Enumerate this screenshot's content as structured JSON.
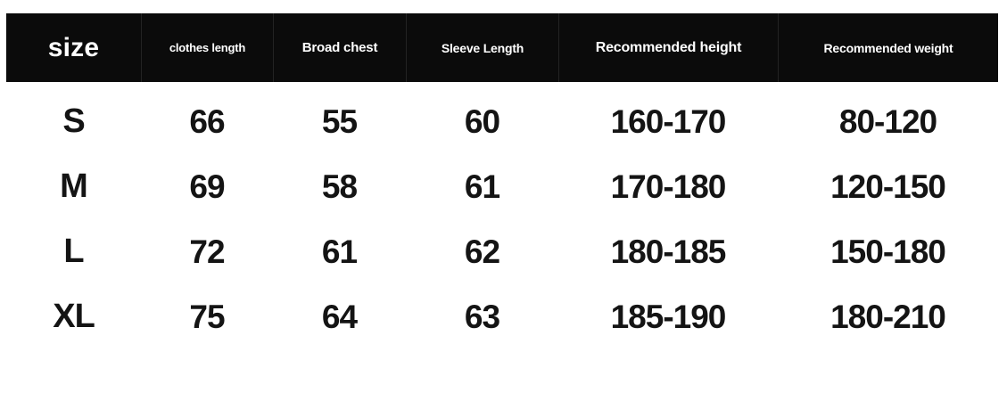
{
  "chart_data": {
    "type": "table",
    "columns": [
      "size",
      "clothes length",
      "Broad chest",
      "Sleeve Length",
      "Recommended height",
      "Recommended weight"
    ],
    "rows": [
      [
        "S",
        "66",
        "55",
        "60",
        "160-170",
        "80-120"
      ],
      [
        "M",
        "69",
        "58",
        "61",
        "170-180",
        "120-150"
      ],
      [
        "L",
        "72",
        "61",
        "62",
        "180-185",
        "150-180"
      ],
      [
        "XL",
        "75",
        "64",
        "63",
        "185-190",
        "180-210"
      ]
    ]
  },
  "colors": {
    "header_bg": "#0b0b0b",
    "header_text": "#ffffff",
    "body_text": "#141414",
    "page_bg": "#ffffff"
  }
}
